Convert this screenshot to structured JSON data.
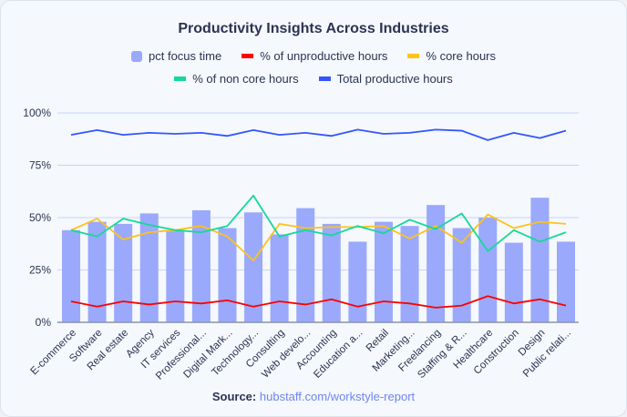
{
  "chart_data": {
    "type": "bar",
    "title": "Productivity Insights Across Industries",
    "categories": [
      "E-commerce",
      "Software",
      "Real estate",
      "Agency",
      "IT services",
      "Professional...",
      "Digital Mark...",
      "Technology...",
      "Consulting",
      "Web develo...",
      "Accounting",
      "Education a...",
      "Retail",
      "Marketing...",
      "Freelancing",
      "Staffing & R...",
      "Healthcare",
      "Construction",
      "Design",
      "Public relati..."
    ],
    "ylim": [
      0,
      100
    ],
    "yticks": [
      "0%",
      "25%",
      "50%",
      "75%",
      "100%"
    ],
    "ytick_values": [
      0,
      25,
      50,
      75,
      100
    ],
    "grid": true,
    "legend_position": "top",
    "series": [
      {
        "name": "pct focus time",
        "kind": "bar",
        "color": "#9aa9fb",
        "values": [
          44,
          48,
          47,
          52,
          44,
          53.5,
          45,
          52.5,
          42,
          54.5,
          47,
          38.5,
          48,
          46,
          56,
          45,
          50,
          38,
          59.5,
          38.5
        ]
      },
      {
        "name": "% of unproductive hours",
        "kind": "line",
        "color": "#ff0000",
        "values": [
          10,
          7.5,
          10,
          8.5,
          10,
          9,
          10.5,
          7.5,
          10,
          8.5,
          11,
          7.5,
          10,
          9,
          7,
          8,
          12.5,
          9,
          11,
          8
        ]
      },
      {
        "name": "% core hours",
        "kind": "line",
        "color": "#ffc21a",
        "values": [
          44,
          49.5,
          39.5,
          43,
          44,
          46,
          41,
          29.5,
          47,
          45,
          45.5,
          45.5,
          46,
          40,
          46,
          38,
          51.5,
          45,
          48,
          47
        ]
      },
      {
        "name": "% of non core hours",
        "kind": "line",
        "color": "#14d99a",
        "values": [
          44,
          41,
          49.5,
          46.5,
          44,
          43,
          46,
          60.5,
          41,
          44,
          41.5,
          46,
          42.5,
          49,
          44.5,
          52,
          34,
          44,
          38.5,
          43
        ]
      },
      {
        "name": "Total productive hours",
        "kind": "line",
        "color": "#3355ff",
        "values": [
          89.5,
          91.8,
          89.5,
          90.5,
          90,
          90.5,
          89,
          91.8,
          89.5,
          90.5,
          89,
          92,
          90,
          90.5,
          92,
          91.5,
          87,
          90.5,
          88,
          91.5
        ]
      }
    ]
  },
  "source": {
    "label": "Source:",
    "link": "hubstaff.com/workstyle-report"
  }
}
